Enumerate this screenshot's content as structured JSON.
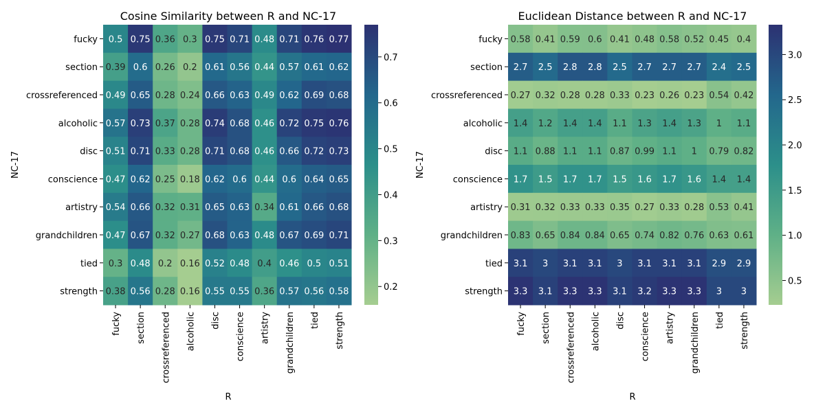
{
  "chart_data": [
    {
      "type": "heatmap",
      "title": "Cosine Similarity between R and NC-17",
      "xlabel": "R",
      "ylabel": "NC-17",
      "x_categories": [
        "fucky",
        "section",
        "crossreferenced",
        "alcoholic",
        "disc",
        "conscience",
        "artistry",
        "grandchildren",
        "tied",
        "strength"
      ],
      "y_categories": [
        "fucky",
        "section",
        "crossreferenced",
        "alcoholic",
        "disc",
        "conscience",
        "artistry",
        "grandchildren",
        "tied",
        "strength"
      ],
      "values": [
        [
          0.5,
          0.75,
          0.36,
          0.3,
          0.75,
          0.71,
          0.48,
          0.71,
          0.76,
          0.77
        ],
        [
          0.39,
          0.6,
          0.26,
          0.2,
          0.61,
          0.56,
          0.44,
          0.57,
          0.61,
          0.62
        ],
        [
          0.49,
          0.65,
          0.28,
          0.24,
          0.66,
          0.63,
          0.49,
          0.62,
          0.69,
          0.68
        ],
        [
          0.57,
          0.73,
          0.37,
          0.28,
          0.74,
          0.68,
          0.46,
          0.72,
          0.75,
          0.76
        ],
        [
          0.51,
          0.71,
          0.33,
          0.28,
          0.71,
          0.68,
          0.46,
          0.66,
          0.72,
          0.73
        ],
        [
          0.47,
          0.62,
          0.25,
          0.18,
          0.62,
          0.6,
          0.44,
          0.6,
          0.64,
          0.65
        ],
        [
          0.54,
          0.66,
          0.32,
          0.31,
          0.65,
          0.63,
          0.34,
          0.61,
          0.66,
          0.68
        ],
        [
          0.47,
          0.67,
          0.32,
          0.27,
          0.68,
          0.63,
          0.48,
          0.67,
          0.69,
          0.71
        ],
        [
          0.3,
          0.48,
          0.2,
          0.16,
          0.52,
          0.48,
          0.4,
          0.46,
          0.5,
          0.51
        ],
        [
          0.38,
          0.56,
          0.28,
          0.16,
          0.55,
          0.55,
          0.36,
          0.57,
          0.56,
          0.58
        ]
      ],
      "vmin": 0.16,
      "vmax": 0.77,
      "colorbar_ticks": [
        0.2,
        0.3,
        0.4,
        0.5,
        0.6,
        0.7
      ],
      "colormap": "crest"
    },
    {
      "type": "heatmap",
      "title": "Euclidean Distance between R and NC-17",
      "xlabel": "R",
      "ylabel": "NC-17",
      "x_categories": [
        "fucky",
        "section",
        "crossreferenced",
        "alcoholic",
        "disc",
        "conscience",
        "artistry",
        "grandchildren",
        "tied",
        "strength"
      ],
      "y_categories": [
        "fucky",
        "section",
        "crossreferenced",
        "alcoholic",
        "disc",
        "conscience",
        "artistry",
        "grandchildren",
        "tied",
        "strength"
      ],
      "values": [
        [
          0.58,
          0.41,
          0.59,
          0.6,
          0.41,
          0.48,
          0.58,
          0.52,
          0.45,
          0.4
        ],
        [
          2.7,
          2.5,
          2.8,
          2.8,
          2.5,
          2.7,
          2.7,
          2.7,
          2.4,
          2.5
        ],
        [
          0.27,
          0.32,
          0.28,
          0.28,
          0.33,
          0.23,
          0.26,
          0.23,
          0.54,
          0.42
        ],
        [
          1.4,
          1.2,
          1.4,
          1.4,
          1.1,
          1.3,
          1.4,
          1.3,
          1,
          1.1
        ],
        [
          1.1,
          0.88,
          1.1,
          1.1,
          0.87,
          0.99,
          1.1,
          1,
          0.79,
          0.82
        ],
        [
          1.7,
          1.5,
          1.7,
          1.7,
          1.5,
          1.6,
          1.7,
          1.6,
          1.4,
          1.4
        ],
        [
          0.31,
          0.32,
          0.33,
          0.33,
          0.35,
          0.27,
          0.33,
          0.28,
          0.53,
          0.41
        ],
        [
          0.83,
          0.65,
          0.84,
          0.84,
          0.65,
          0.74,
          0.82,
          0.76,
          0.63,
          0.61
        ],
        [
          3.1,
          3,
          3.1,
          3.1,
          3,
          3.1,
          3.1,
          3.1,
          2.9,
          2.9
        ],
        [
          3.3,
          3.1,
          3.3,
          3.3,
          3.1,
          3.2,
          3.3,
          3.3,
          3,
          3
        ]
      ],
      "vmin": 0.23,
      "vmax": 3.33,
      "colorbar_ticks": [
        0.5,
        1.0,
        1.5,
        2.0,
        2.5,
        3.0
      ],
      "colormap": "crest"
    }
  ]
}
